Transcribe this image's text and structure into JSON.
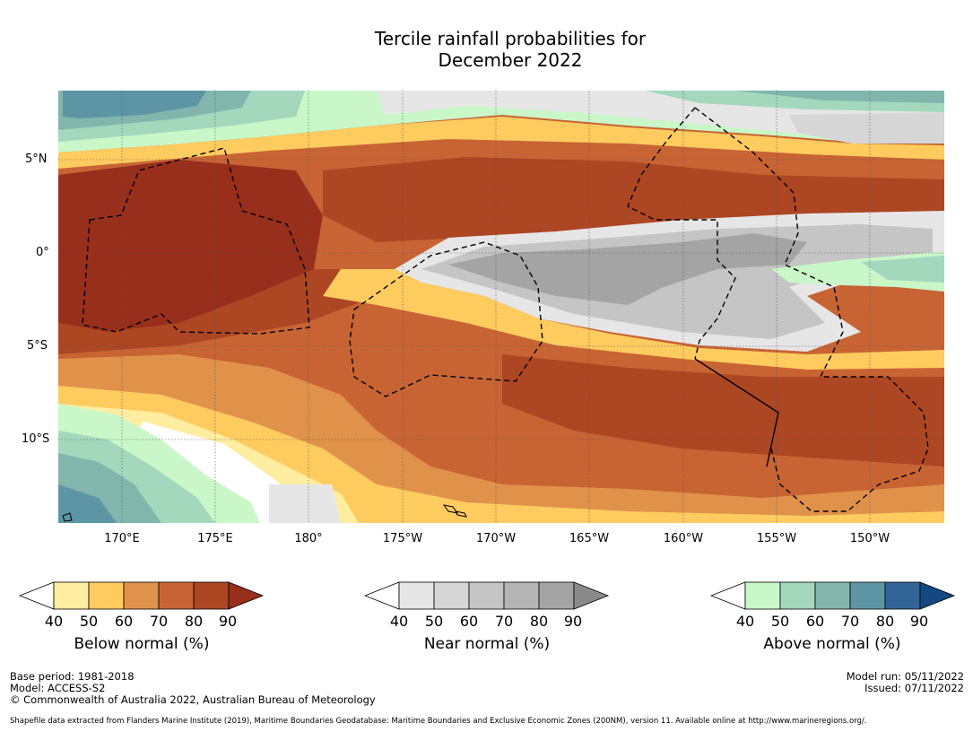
{
  "title": {
    "line1": "Tercile rainfall probabilities for",
    "line2": "December 2022"
  },
  "map": {
    "lat_labels": [
      "5°N",
      "0°",
      "5°S",
      "10°S"
    ],
    "lon_labels": [
      "170°E",
      "175°E",
      "180°",
      "175°W",
      "170°W",
      "165°W",
      "160°W",
      "155°W",
      "150°W"
    ]
  },
  "colorbars": [
    {
      "title": "Below normal (%)",
      "ticks": [
        "40",
        "50",
        "60",
        "70",
        "80",
        "90"
      ],
      "colors": [
        "#ffffff",
        "#ffeda0",
        "#fecb5f",
        "#e0924a",
        "#c86434",
        "#ad4623",
        "#982f1c"
      ]
    },
    {
      "title": "Near normal (%)",
      "ticks": [
        "40",
        "50",
        "60",
        "70",
        "80",
        "90"
      ],
      "colors": [
        "#ffffff",
        "#e6e6e6",
        "#d6d6d6",
        "#c5c5c5",
        "#b5b5b5",
        "#a4a4a4",
        "#8a8a8a"
      ]
    },
    {
      "title": "Above normal (%)",
      "ticks": [
        "40",
        "50",
        "60",
        "70",
        "80",
        "90"
      ],
      "colors": [
        "#ffffff",
        "#c9f7c8",
        "#a3d8bd",
        "#82b6ad",
        "#5e95a4",
        "#336498",
        "#144882"
      ]
    }
  ],
  "footer": {
    "base_period": "Base period: 1981-2018",
    "model": "Model: ACCESS-S2",
    "copyright": "© Commonwealth of Australia 2022, Australian Bureau of Meteorology",
    "model_run": "Model run: 05/11/2022",
    "issued": "Issued: 07/11/2022",
    "shapefile": "Shapefile data extracted from Flanders Marine Institute (2019), Maritime Boundaries Geodatabase: Maritime Boundaries and Exclusive Economic Zones (200NM), version 11. Available online at http://www.marineregions.org/."
  }
}
